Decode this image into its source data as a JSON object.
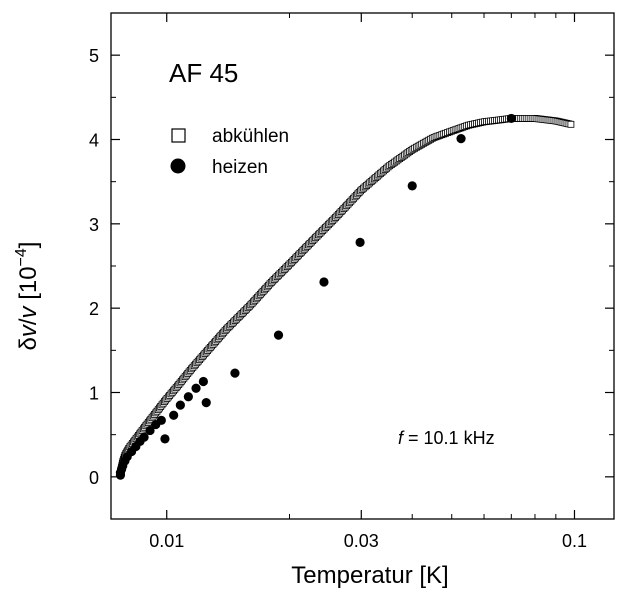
{
  "chart_data": {
    "type": "scatter",
    "title": "AF 45",
    "xlabel": "Temperatur [K]",
    "ylabel_parts": {
      "delta": "δ",
      "v1": "v",
      "slash": "/",
      "v2": "v",
      "unit_open": " [10",
      "unit_exp": "−4",
      "unit_close": "]"
    },
    "xscale": "log",
    "xlim": [
      0.0073,
      0.125
    ],
    "ylim": [
      -0.5,
      5.5
    ],
    "x_ticks": [
      {
        "value": 0.01,
        "label": "0.01"
      },
      {
        "value": 0.03,
        "label": "0.03"
      },
      {
        "value": 0.1,
        "label": "0.1"
      }
    ],
    "x_minor_ticks": [
      0.02,
      0.04,
      0.05,
      0.06,
      0.07,
      0.08,
      0.09
    ],
    "y_ticks": [
      {
        "value": 0,
        "label": "0"
      },
      {
        "value": 1,
        "label": "1"
      },
      {
        "value": 2,
        "label": "2"
      },
      {
        "value": 3,
        "label": "3"
      },
      {
        "value": 4,
        "label": "4"
      },
      {
        "value": 5,
        "label": "5"
      }
    ],
    "y_minor_ticks": [
      -0.5,
      0.5,
      1.5,
      2.5,
      3.5,
      4.5
    ],
    "annotation": {
      "italic": "f",
      "rest": " = 10.1 kHz"
    },
    "legend_position": "upper-left",
    "series": [
      {
        "name": "abkühlen",
        "marker": "open-square",
        "curve": [
          [
            0.0077,
            0.02
          ],
          [
            0.0077,
            0.06
          ],
          [
            0.00775,
            0.12
          ],
          [
            0.0078,
            0.18
          ],
          [
            0.0079,
            0.26
          ],
          [
            0.0081,
            0.35
          ],
          [
            0.0084,
            0.45
          ],
          [
            0.0088,
            0.58
          ],
          [
            0.0093,
            0.73
          ],
          [
            0.0099,
            0.9
          ],
          [
            0.0106,
            1.07
          ],
          [
            0.0115,
            1.28
          ],
          [
            0.0125,
            1.48
          ],
          [
            0.014,
            1.75
          ],
          [
            0.016,
            2.03
          ],
          [
            0.018,
            2.3
          ],
          [
            0.02,
            2.52
          ],
          [
            0.023,
            2.82
          ],
          [
            0.026,
            3.08
          ],
          [
            0.03,
            3.4
          ],
          [
            0.035,
            3.68
          ],
          [
            0.04,
            3.88
          ],
          [
            0.045,
            4.02
          ],
          [
            0.05,
            4.1
          ],
          [
            0.055,
            4.17
          ],
          [
            0.06,
            4.21
          ],
          [
            0.065,
            4.23
          ],
          [
            0.07,
            4.25
          ],
          [
            0.08,
            4.25
          ],
          [
            0.09,
            4.22
          ],
          [
            0.098,
            4.18
          ]
        ],
        "count": 300
      },
      {
        "name": "heizen",
        "marker": "filled-circle",
        "points": [
          [
            0.0077,
            0.02
          ],
          [
            0.0077,
            0.05
          ],
          [
            0.00775,
            0.09
          ],
          [
            0.0078,
            0.13
          ],
          [
            0.0079,
            0.19
          ],
          [
            0.008,
            0.24
          ],
          [
            0.0082,
            0.3
          ],
          [
            0.0084,
            0.36
          ],
          [
            0.0086,
            0.42
          ],
          [
            0.0088,
            0.47
          ],
          [
            0.0091,
            0.55
          ],
          [
            0.0094,
            0.62
          ],
          [
            0.0097,
            0.67
          ],
          [
            0.0099,
            0.45
          ],
          [
            0.0104,
            0.73
          ],
          [
            0.0108,
            0.85
          ],
          [
            0.0113,
            0.95
          ],
          [
            0.0118,
            1.05
          ],
          [
            0.0123,
            1.13
          ],
          [
            0.0125,
            0.88
          ],
          [
            0.0147,
            1.23
          ],
          [
            0.0188,
            1.68
          ],
          [
            0.0243,
            2.31
          ],
          [
            0.0298,
            2.78
          ],
          [
            0.04,
            3.45
          ],
          [
            0.0527,
            4.01
          ],
          [
            0.07,
            4.25
          ]
        ]
      }
    ]
  }
}
